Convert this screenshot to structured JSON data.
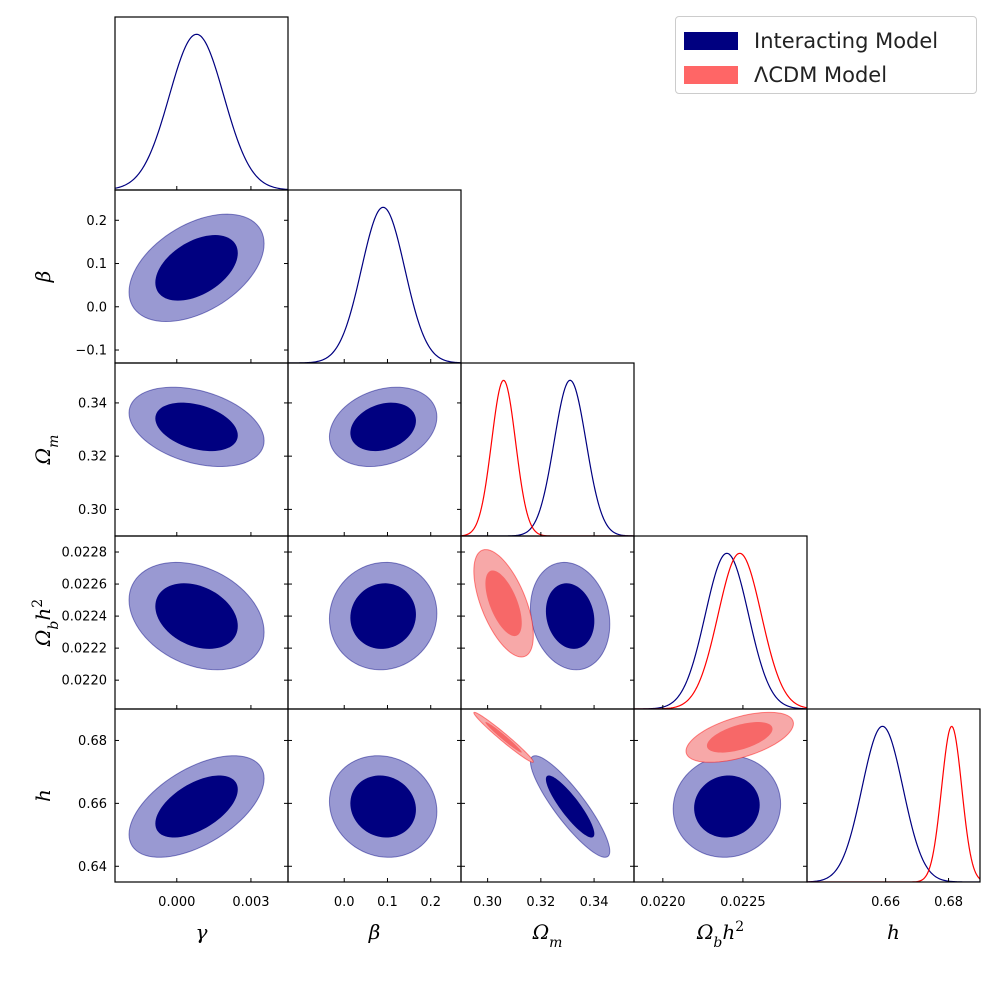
{
  "chart_data": {
    "type": "triangle-corner-plot",
    "parameters": [
      {
        "name": "gamma",
        "label": "γ",
        "range": [
          -0.0025,
          0.0045
        ],
        "ticks": [
          0.0,
          0.003
        ],
        "tick_labels": [
          "0.000",
          "0.003"
        ]
      },
      {
        "name": "beta",
        "label": "β",
        "range": [
          -0.13,
          0.27
        ],
        "ticks": [
          0.0,
          0.1,
          0.2
        ],
        "tick_labels": [
          "0.0",
          "0.1",
          "0.2"
        ]
      },
      {
        "name": "omega_m",
        "label": "Ωm",
        "range": [
          0.29,
          0.355
        ],
        "ticks": [
          0.3,
          0.32,
          0.34
        ],
        "tick_labels": [
          "0.30",
          "0.32",
          "0.34"
        ]
      },
      {
        "name": "omega_b_h2",
        "label": "Ωbh²",
        "range": [
          0.02182,
          0.0229
        ],
        "ticks": [
          0.022,
          0.0225
        ],
        "tick_labels": [
          "0.0220",
          "0.0225"
        ]
      },
      {
        "name": "h",
        "label": "h",
        "range": [
          0.635,
          0.69
        ],
        "ticks": [
          0.66,
          0.68
        ],
        "tick_labels": [
          "0.66",
          "0.68"
        ]
      }
    ],
    "y_ticks": {
      "beta": {
        "ticks": [
          -0.1,
          0.0,
          0.1,
          0.2
        ],
        "tick_labels": [
          "−0.1",
          "0.0",
          "0.1",
          "0.2"
        ]
      },
      "omega_m": {
        "ticks": [
          0.3,
          0.32,
          0.34
        ],
        "tick_labels": [
          "0.30",
          "0.32",
          "0.34"
        ]
      },
      "omega_b_h2": {
        "ticks": [
          0.022,
          0.0222,
          0.0224,
          0.0226,
          0.0228
        ],
        "tick_labels": [
          "0.0220",
          "0.0222",
          "0.0224",
          "0.0226",
          "0.0228"
        ]
      },
      "h": {
        "ticks": [
          0.64,
          0.66,
          0.68
        ],
        "tick_labels": [
          "0.64",
          "0.66",
          "0.68"
        ]
      }
    },
    "series": [
      {
        "name": "Interacting Model",
        "color": "#000080",
        "fill_outer": "#9999d2",
        "fill_inner": "#000080",
        "means": {
          "gamma": 0.0008,
          "beta": 0.09,
          "omega_m": 0.331,
          "omega_b_h2": 0.0224,
          "h": 0.659
        },
        "sigmas": {
          "gamma": 0.0011,
          "beta": 0.05,
          "omega_m": 0.006,
          "omega_b_h2": 0.000135,
          "h": 0.0065
        },
        "correlations": [
          {
            "x": "gamma",
            "y": "beta",
            "rho": 0.45
          },
          {
            "x": "gamma",
            "y": "omega_m",
            "rho": -0.35
          },
          {
            "x": "beta",
            "y": "omega_m",
            "rho": 0.25
          },
          {
            "x": "gamma",
            "y": "omega_b_h2",
            "rho": -0.3
          },
          {
            "x": "beta",
            "y": "omega_b_h2",
            "rho": 0.05
          },
          {
            "x": "omega_m",
            "y": "omega_b_h2",
            "rho": -0.15
          },
          {
            "x": "gamma",
            "y": "h",
            "rho": 0.55
          },
          {
            "x": "beta",
            "y": "h",
            "rho": -0.1
          },
          {
            "x": "omega_m",
            "y": "h",
            "rho": -0.88
          },
          {
            "x": "omega_b_h2",
            "y": "h",
            "rho": 0.05
          }
        ]
      },
      {
        "name": "ΛCDM Model",
        "color": "#ff0000",
        "fill_outer": "#f7a8a8",
        "fill_inner": "#f76868",
        "means": {
          "omega_m": 0.306,
          "omega_b_h2": 0.02248,
          "h": 0.681
        },
        "sigmas": {
          "omega_m": 0.0045,
          "omega_b_h2": 0.000135,
          "h": 0.0032
        },
        "correlations": [
          {
            "x": "omega_m",
            "y": "omega_b_h2",
            "rho": -0.6
          },
          {
            "x": "omega_m",
            "y": "h",
            "rho": -0.98
          },
          {
            "x": "omega_b_h2",
            "y": "h",
            "rho": 0.55
          }
        ]
      }
    ],
    "legend": {
      "placement": "top-right",
      "entries": [
        "Interacting Model",
        "ΛCDM Model"
      ]
    }
  }
}
